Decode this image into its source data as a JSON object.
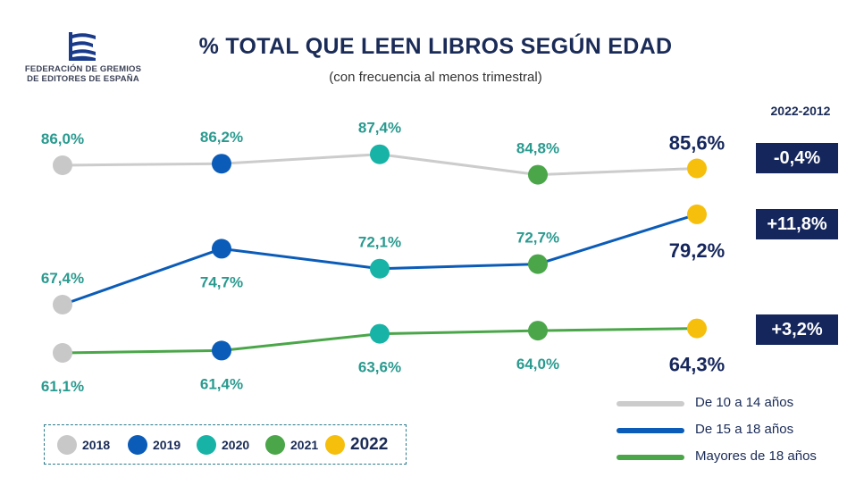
{
  "header": {
    "org_line1": "FEDERACIÓN DE GREMIOS",
    "org_line2": "DE EDITORES DE ESPAÑA",
    "title": "% TOTAL QUE LEEN LIBROS SEGÚN EDAD",
    "subtitle": "(con frecuencia al menos trimestral)"
  },
  "delta": {
    "header": "2022-2012",
    "values": [
      "-0,4%",
      "+11,8%",
      "+3,2%"
    ]
  },
  "colors": {
    "navy": "#15265c",
    "teal_label": "#2a9a8f",
    "year_2018": "#c8c8c8",
    "year_2019": "#0b5cb8",
    "year_2020": "#17b3a6",
    "year_2021": "#4ba64a",
    "year_2022": "#f6bf0c",
    "line_10_14": "#cccccc",
    "line_15_18": "#0b5cb8",
    "line_18plus": "#4ba64a"
  },
  "chart_data": {
    "type": "line",
    "categories": [
      "2018",
      "2019",
      "2020",
      "2021",
      "2022"
    ],
    "series": [
      {
        "name": "De 10 a 14 años",
        "values": [
          86.0,
          86.2,
          87.4,
          84.8,
          85.6
        ],
        "labels": [
          "86,0%",
          "86,2%",
          "87,4%",
          "84,8%",
          "85,6%"
        ]
      },
      {
        "name": "De 15 a 18 años",
        "values": [
          67.4,
          74.7,
          72.1,
          72.7,
          79.2
        ],
        "labels": [
          "67,4%",
          "74,7%",
          "72,1%",
          "72,7%",
          "79,2%"
        ]
      },
      {
        "name": "Mayores de 18 años",
        "values": [
          61.1,
          61.4,
          63.6,
          64.0,
          64.3
        ],
        "labels": [
          "61,1%",
          "61,4%",
          "63,6%",
          "64,0%",
          "64,3%"
        ]
      }
    ],
    "legend": [
      "De 10 a 14 años",
      "De 15 a 18 años",
      "Mayores de 18 años"
    ],
    "year_legend": [
      "2018",
      "2019",
      "2020",
      "2021",
      "2022"
    ]
  }
}
